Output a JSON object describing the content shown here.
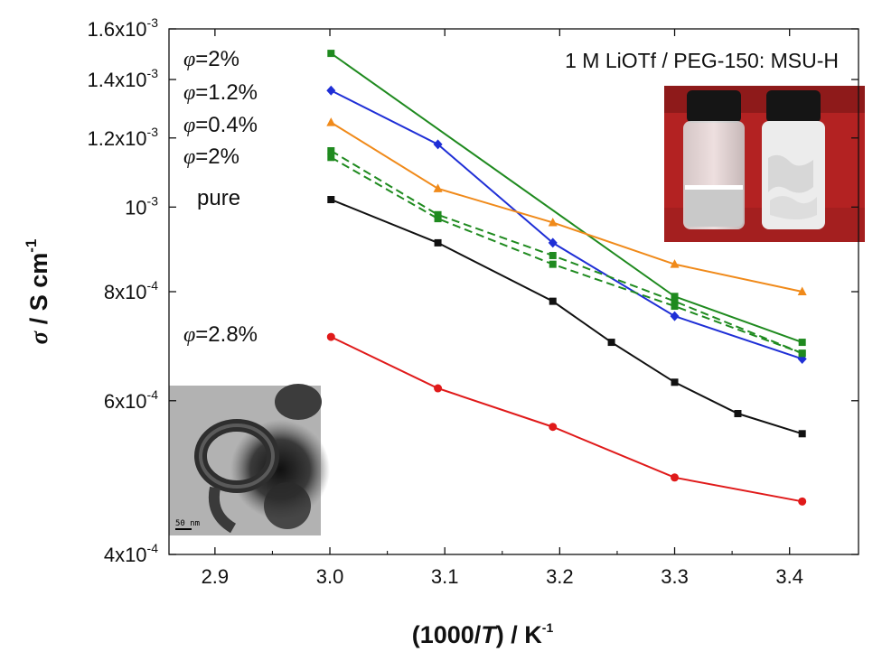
{
  "chart_data": {
    "type": "line",
    "title": "1 M LiOTf / PEG-150: MSU-H",
    "xlabel_parts": [
      "(1000/",
      "T",
      ") / K",
      "-1"
    ],
    "ylabel_parts": [
      "σ",
      " / S cm",
      "-1"
    ],
    "x_ticks": [
      "2.9",
      "3.0",
      "3.1",
      "3.2",
      "3.3",
      "3.4"
    ],
    "x_tick_values": [
      2.9,
      3.0,
      3.1,
      3.2,
      3.3,
      3.4
    ],
    "y_ticks": [
      {
        "value": 0.0016,
        "base": "1.6x10",
        "exp": "-3"
      },
      {
        "value": 0.0014,
        "base": "1.4x10",
        "exp": "-3"
      },
      {
        "value": 0.0012,
        "base": "1.2x10",
        "exp": "-3"
      },
      {
        "value": 0.001,
        "base": "10",
        "exp": "-3"
      },
      {
        "value": 0.0008,
        "base": "8x10",
        "exp": "-4"
      },
      {
        "value": 0.0006,
        "base": "6x10",
        "exp": "-4"
      },
      {
        "value": 0.0004,
        "base": "4x10",
        "exp": "-4"
      }
    ],
    "xlim": [
      2.86,
      3.46
    ],
    "ylim": [
      0.0004,
      0.0016
    ],
    "y_scale": "log",
    "grid": false,
    "series": [
      {
        "label": "φ=2%",
        "phi": "φ",
        "text": "=2%",
        "color": "#1f8a1f",
        "marker": "square",
        "dashed": false,
        "x": [
          3.001,
          3.3,
          3.411
        ],
        "y": [
          0.0015,
          0.00079,
          0.0007
        ]
      },
      {
        "label": "φ=1.2%",
        "phi": "φ",
        "text": "=1.2%",
        "color": "#1f2fd6",
        "marker": "diamond",
        "dashed": false,
        "x": [
          3.001,
          3.094,
          3.194,
          3.3,
          3.411
        ],
        "y": [
          0.00136,
          0.00118,
          0.00091,
          0.00075,
          0.00067
        ]
      },
      {
        "label": "φ=0.4%",
        "phi": "φ",
        "text": "=0.4%",
        "color": "#f08a1a",
        "marker": "triangle",
        "dashed": false,
        "x": [
          3.001,
          3.094,
          3.194,
          3.3,
          3.411
        ],
        "y": [
          0.00125,
          0.00105,
          0.00096,
          0.00086,
          0.0008
        ]
      },
      {
        "label": "φ=2%",
        "phi": "φ",
        "text": "=2%",
        "color": "#1f8a1f",
        "marker": "square",
        "dashed": true,
        "x": [
          3.001,
          3.094,
          3.194,
          3.3,
          3.411
        ],
        "y": [
          0.00116,
          0.00098,
          0.00088,
          0.00078,
          0.00068
        ]
      },
      {
        "label": "φ=2%",
        "phi": "",
        "text": "",
        "color": "#1f8a1f",
        "marker": "square",
        "dashed": true,
        "x": [
          3.001,
          3.094,
          3.194,
          3.3,
          3.411
        ],
        "y": [
          0.00114,
          0.00097,
          0.00086,
          0.00077,
          0.00068
        ]
      },
      {
        "label": "pure",
        "phi": "",
        "text": "pure",
        "color": "#111111",
        "marker": "square",
        "dashed": false,
        "x": [
          3.001,
          3.094,
          3.194,
          3.245,
          3.3,
          3.355,
          3.411
        ],
        "y": [
          0.00102,
          0.00091,
          0.00078,
          0.0007,
          0.00063,
          0.00058,
          0.00055
        ]
      },
      {
        "label": "φ=2.8%",
        "phi": "φ",
        "text": "=2.8%",
        "color": "#e01a1a",
        "marker": "circle",
        "dashed": false,
        "x": [
          3.001,
          3.094,
          3.194,
          3.3,
          3.411
        ],
        "y": [
          0.00071,
          0.00062,
          0.00056,
          0.00049,
          0.00046
        ]
      }
    ]
  },
  "insets": {
    "tem_scalebar": "50 nm"
  }
}
